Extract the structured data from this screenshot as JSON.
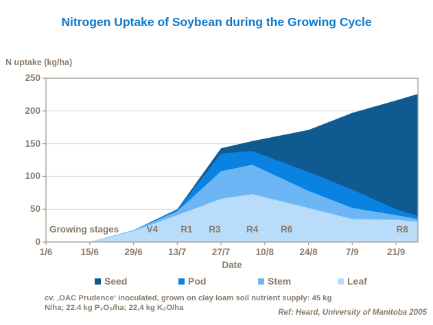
{
  "colors": {
    "title": "#0e79cb",
    "text": "#8a7a6a",
    "grid": "#d8d8d8",
    "axis": "#a59c93",
    "background": "#ffffff"
  },
  "chart_data": {
    "type": "area",
    "stacked": true,
    "title": "Nitrogen Uptake of Soybean during the Growing Cycle",
    "ylabel": "N uptake (kg/ha)",
    "xlabel": "Date",
    "ylim": [
      0,
      250
    ],
    "ytick_step": 50,
    "grid": "horizontal",
    "legend_position": "bottom",
    "x_tick_labels": [
      "1/6",
      "15/6",
      "29/6",
      "13/7",
      "27/7",
      "10/8",
      "24/8",
      "7/9",
      "21/9"
    ],
    "x_tick_days": [
      0,
      14,
      28,
      42,
      56,
      70,
      84,
      98,
      112
    ],
    "x_range_days": [
      0,
      119
    ],
    "x_days": [
      0,
      14,
      28,
      42,
      56,
      66,
      84,
      98,
      112,
      119
    ],
    "series": [
      {
        "name": "Leaf",
        "color": "#b9dcfa",
        "values": [
          0,
          0,
          17,
          41,
          66,
          73,
          52,
          35,
          34,
          31
        ]
      },
      {
        "name": "Stem",
        "color": "#6db6f6",
        "values": [
          0,
          0,
          1,
          6,
          42,
          45,
          26,
          17,
          7,
          4
        ]
      },
      {
        "name": "Pod",
        "color": "#0a82e2",
        "values": [
          0,
          0,
          0,
          2,
          27,
          21,
          29,
          28,
          9,
          5
        ]
      },
      {
        "name": "Seed",
        "color": "#105a92",
        "values": [
          0,
          0,
          0,
          1,
          8,
          15,
          64,
          117,
          166,
          186
        ]
      }
    ],
    "legend_order": [
      "Seed",
      "Pod",
      "Stem",
      "Leaf"
    ],
    "stages": {
      "label": "Growing stages",
      "items": [
        {
          "name": "V4",
          "day": 34
        },
        {
          "name": "R1",
          "day": 45
        },
        {
          "name": "R3",
          "day": 54
        },
        {
          "name": "R4",
          "day": 66
        },
        {
          "name": "R6",
          "day": 77
        },
        {
          "name": "R8",
          "day": 114
        }
      ]
    }
  },
  "footnote": {
    "line1": "cv. ‚OAC Prudence‘ inoculated, grown on clay loam soil nutrient supply: 45 kg",
    "line2": "N/ha; 22.4 kg P₂O₅/ha; 22,4 kg K₂O/ha",
    "reference": "Ref: Heard, University of Manitoba 2005"
  }
}
